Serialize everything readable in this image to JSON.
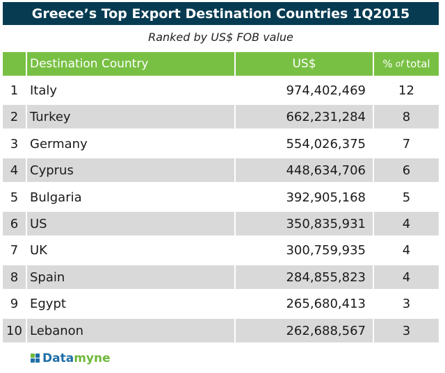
{
  "title": "Greece’s Top Export Destination Countries 1Q2015",
  "subtitle": "Ranked by US$ FOB value",
  "columns": {
    "country": "Destination Country",
    "usd": "US$",
    "pct_pre": "%",
    "pct_of": "of",
    "pct_post": "total"
  },
  "chart_data": {
    "type": "table",
    "title": "Greece’s Top Export Destination Countries 1Q2015",
    "subtitle": "Ranked by US$ FOB value",
    "columns": [
      "",
      "Destination Country",
      "US$",
      "% of total"
    ],
    "rows": [
      {
        "rank": "1",
        "country": "Italy",
        "usd": "974,402,469",
        "pct": "12"
      },
      {
        "rank": "2",
        "country": "Turkey",
        "usd": "662,231,284",
        "pct": "8"
      },
      {
        "rank": "3",
        "country": "Germany",
        "usd": "554,026,375",
        "pct": "7"
      },
      {
        "rank": "4",
        "country": "Cyprus",
        "usd": "448,634,706",
        "pct": "6"
      },
      {
        "rank": "5",
        "country": "Bulgaria",
        "usd": "392,905,168",
        "pct": "5"
      },
      {
        "rank": "6",
        "country": "US",
        "usd": "350,835,931",
        "pct": "4"
      },
      {
        "rank": "7",
        "country": "UK",
        "usd": "300,759,935",
        "pct": "4"
      },
      {
        "rank": "8",
        "country": "Spain",
        "usd": "284,855,823",
        "pct": "4"
      },
      {
        "rank": "9",
        "country": "Egypt",
        "usd": "265,680,413",
        "pct": "3"
      },
      {
        "rank": "10",
        "country": "Lebanon",
        "usd": "262,688,567",
        "pct": "3"
      }
    ]
  },
  "brand": {
    "part1": "Data",
    "part2": "myne"
  },
  "colors": {
    "title_bg": "#063b52",
    "header_bg": "#78c043",
    "stripe": "#d9d9d9",
    "brand_blue": "#1f6fa6",
    "brand_green": "#6fb83a"
  }
}
